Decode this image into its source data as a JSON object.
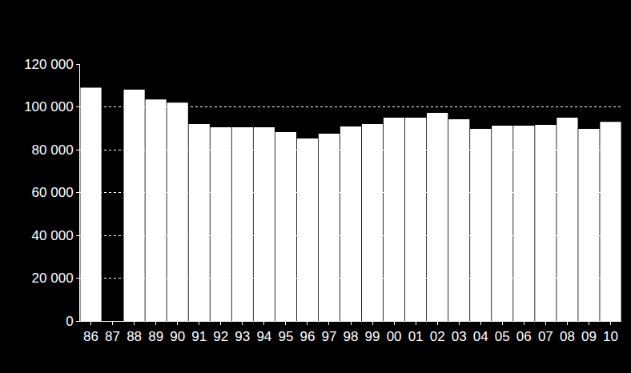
{
  "chart_data": {
    "type": "bar",
    "categories": [
      "86",
      "87",
      "88",
      "89",
      "90",
      "91",
      "92",
      "93",
      "94",
      "95",
      "96",
      "97",
      "98",
      "99",
      "00",
      "01",
      "02",
      "03",
      "04",
      "05",
      "06",
      "07",
      "08",
      "09",
      "10"
    ],
    "values": [
      109000,
      null,
      108000,
      103500,
      102000,
      92000,
      90500,
      90500,
      90500,
      88200,
      85200,
      87500,
      90800,
      92000,
      95000,
      95000,
      97200,
      94200,
      89700,
      91200,
      91200,
      91600,
      95000,
      89700,
      93000
    ],
    "color": "#ffffff",
    "ylim": [
      0,
      120000
    ],
    "yticks": [
      0,
      {
        "value": 20000,
        "label": "20 000"
      },
      {
        "value": 40000,
        "label": "40 000"
      },
      {
        "value": 60000,
        "label": "60 000"
      },
      {
        "value": 80000,
        "label": "80 000"
      },
      {
        "value": 100000,
        "label": "100 000"
      },
      {
        "value": 120000,
        "label": "120 000"
      }
    ],
    "grid": true
  }
}
